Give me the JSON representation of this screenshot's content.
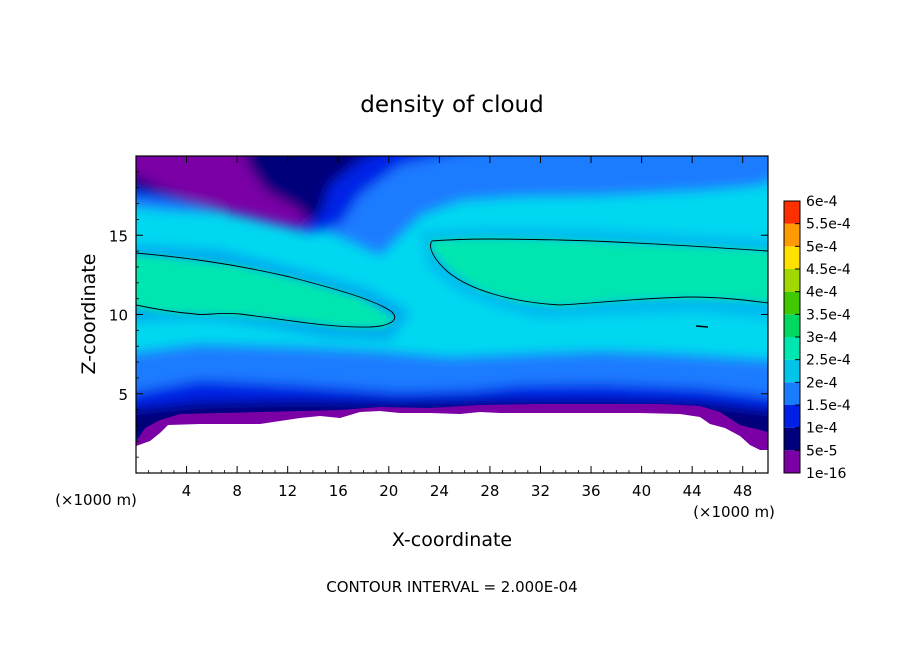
{
  "chart_data": {
    "type": "heatmap",
    "title": "density of cloud",
    "xlabel": "X-coordinate",
    "ylabel": "Z-coordinate",
    "x_unit": "(×1000 m)",
    "y_unit": "(×1000 m)",
    "xlim": [
      0,
      50
    ],
    "ylim": [
      0,
      20
    ],
    "x_ticks": [
      4,
      8,
      12,
      16,
      20,
      24,
      28,
      32,
      36,
      40,
      44,
      48
    ],
    "y_ticks": [
      5,
      10,
      15
    ],
    "footer": "CONTOUR INTERVAL = 2.000E-04",
    "colorbar": {
      "labels": [
        "1e-16",
        "5e-5",
        "1e-4",
        "1.5e-4",
        "2e-4",
        "2.5e-4",
        "3e-4",
        "3.5e-4",
        "4e-4",
        "4.5e-4",
        "5e-4",
        "5.5e-4",
        "6e-4"
      ],
      "colors": [
        "#7a00a6",
        "#00007a",
        "#0020e6",
        "#1a7cff",
        "#00c4e8",
        "#00e6b0",
        "#00d860",
        "#40c800",
        "#a0d800",
        "#ffe000",
        "#ff9a00",
        "#ff3000",
        "#ff7070"
      ]
    },
    "background_color": "#00d8f0",
    "regions": [
      {
        "name": "upper-left purple lobe",
        "level": "1e-16",
        "approx_x": [
          0,
          14
        ],
        "approx_z": [
          16.5,
          20
        ]
      },
      {
        "name": "dark blue upper band",
        "level": "5e-5",
        "approx_x": [
          0,
          22
        ],
        "approx_z": [
          14.5,
          20
        ]
      },
      {
        "name": "left high-density band",
        "level": "2e-4",
        "approx_x": [
          0,
          21
        ],
        "approx_z": [
          9.5,
          13.7
        ]
      },
      {
        "name": "right high-density band",
        "level": "2e-4",
        "approx_x": [
          23,
          50
        ],
        "approx_z": [
          10.5,
          14.7
        ]
      },
      {
        "name": "lower blue layer",
        "level": "1e-4",
        "approx_x": [
          0,
          50
        ],
        "approx_z": [
          4,
          7
        ]
      },
      {
        "name": "no-data ground",
        "level": "none",
        "approx_x": [
          0,
          50
        ],
        "approx_z": [
          0,
          3.5
        ]
      }
    ]
  }
}
